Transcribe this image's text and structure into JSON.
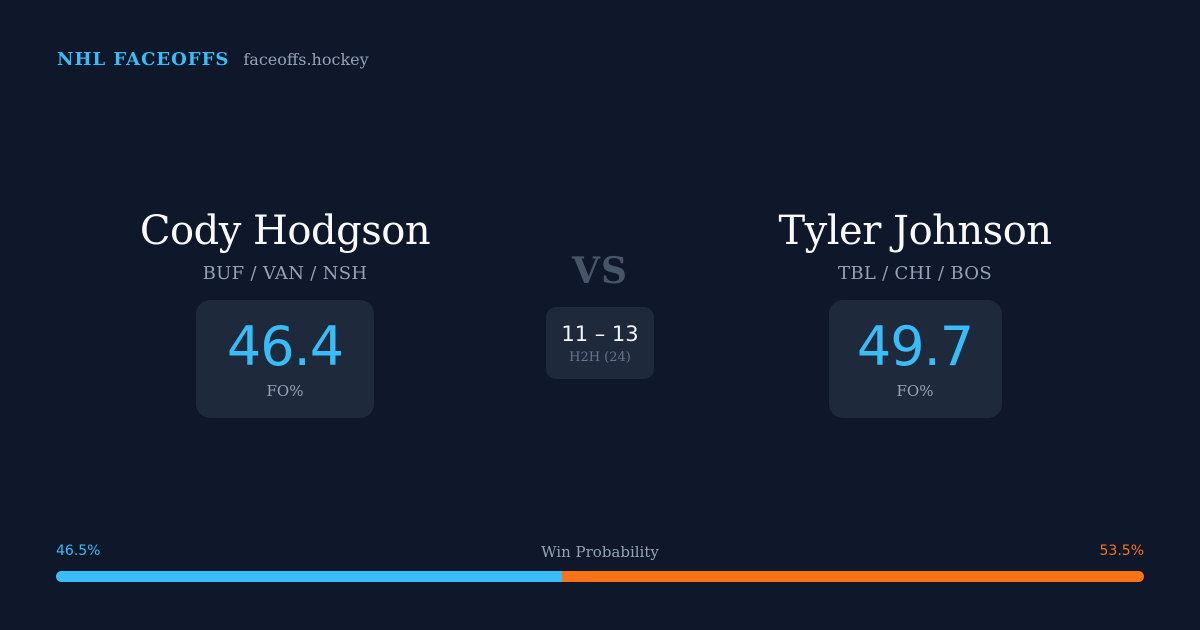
{
  "brand": {
    "title": "NHL FACEOFFS",
    "domain": "faceoffs.hockey"
  },
  "player_left": {
    "name": "Cody Hodgson",
    "teams": "BUF / VAN / NSH",
    "fo_value": "46.4",
    "fo_label": "FO%"
  },
  "player_right": {
    "name": "Tyler Johnson",
    "teams": "TBL / CHI / BOS",
    "fo_value": "49.7",
    "fo_label": "FO%"
  },
  "vs_label": "VS",
  "h2h": {
    "score": "11 – 13",
    "label": "H2H (24)"
  },
  "win_probability": {
    "label": "Win Probability",
    "left_text": "46.5%",
    "right_text": "53.5%",
    "left_fraction": 0.465,
    "left_color": "#38bdf8",
    "right_color": "#f97316"
  }
}
